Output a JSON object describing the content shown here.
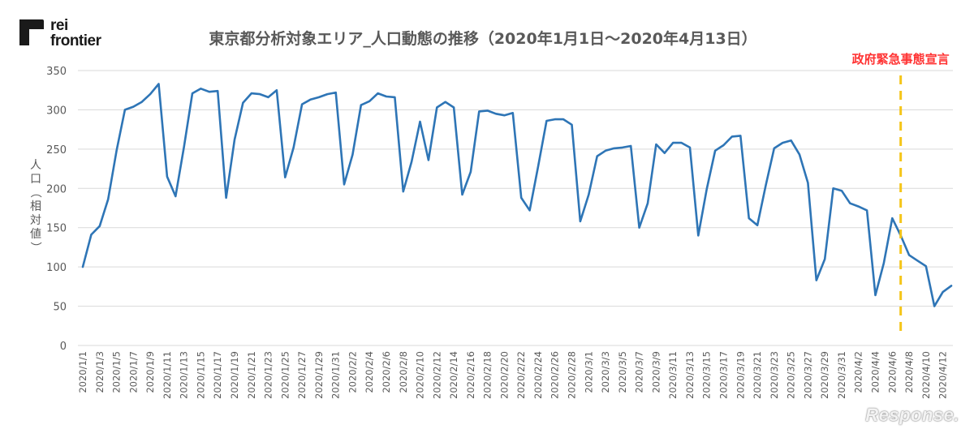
{
  "brand": {
    "name_line1": "rei",
    "name_line2": "frontier"
  },
  "watermark": "Response.",
  "colors": {
    "line": "#2e75b6",
    "event_line": "#f5c518",
    "event_label": "#ff3333",
    "grid": "#d9d9d9"
  },
  "chart_data": {
    "type": "line",
    "title": "東京都分析対象エリア_人口動態の推移（2020年1月1日〜2020年4月13日）",
    "ylabel": "人口（相対値）",
    "xlabel": "",
    "ylim": [
      0,
      350
    ],
    "yticks": [
      0,
      50,
      100,
      150,
      200,
      250,
      300,
      350
    ],
    "grid": "horizontal",
    "categories": [
      "2020/1/1",
      "2020/1/2",
      "2020/1/3",
      "2020/1/4",
      "2020/1/5",
      "2020/1/6",
      "2020/1/7",
      "2020/1/8",
      "2020/1/9",
      "2020/1/10",
      "2020/1/11",
      "2020/1/12",
      "2020/1/13",
      "2020/1/14",
      "2020/1/15",
      "2020/1/16",
      "2020/1/17",
      "2020/1/18",
      "2020/1/19",
      "2020/1/20",
      "2020/1/21",
      "2020/1/22",
      "2020/1/23",
      "2020/1/24",
      "2020/1/25",
      "2020/1/26",
      "2020/1/27",
      "2020/1/28",
      "2020/1/29",
      "2020/1/30",
      "2020/1/31",
      "2020/2/1",
      "2020/2/2",
      "2020/2/3",
      "2020/2/4",
      "2020/2/5",
      "2020/2/6",
      "2020/2/7",
      "2020/2/8",
      "2020/2/9",
      "2020/2/10",
      "2020/2/11",
      "2020/2/12",
      "2020/2/13",
      "2020/2/14",
      "2020/2/15",
      "2020/2/16",
      "2020/2/17",
      "2020/2/18",
      "2020/2/19",
      "2020/2/20",
      "2020/2/21",
      "2020/2/22",
      "2020/2/23",
      "2020/2/24",
      "2020/2/25",
      "2020/2/26",
      "2020/2/27",
      "2020/2/28",
      "2020/2/29",
      "2020/3/1",
      "2020/3/2",
      "2020/3/3",
      "2020/3/4",
      "2020/3/5",
      "2020/3/6",
      "2020/3/7",
      "2020/3/8",
      "2020/3/9",
      "2020/3/10",
      "2020/3/11",
      "2020/3/12",
      "2020/3/13",
      "2020/3/14",
      "2020/3/15",
      "2020/3/16",
      "2020/3/17",
      "2020/3/18",
      "2020/3/19",
      "2020/3/20",
      "2020/3/21",
      "2020/3/22",
      "2020/3/23",
      "2020/3/24",
      "2020/3/25",
      "2020/3/26",
      "2020/3/27",
      "2020/3/28",
      "2020/3/29",
      "2020/3/30",
      "2020/3/31",
      "2020/4/1",
      "2020/4/2",
      "2020/4/3",
      "2020/4/4",
      "2020/4/5",
      "2020/4/6",
      "2020/4/7",
      "2020/4/8",
      "2020/4/9",
      "2020/4/10",
      "2020/4/11",
      "2020/4/12",
      "2020/4/13"
    ],
    "values": [
      100,
      141,
      152,
      186,
      248,
      300,
      304,
      310,
      320,
      333,
      215,
      190,
      253,
      321,
      327,
      323,
      324,
      188,
      262,
      309,
      321,
      320,
      316,
      325,
      214,
      252,
      307,
      313,
      316,
      320,
      322,
      205,
      243,
      306,
      311,
      321,
      317,
      316,
      196,
      234,
      285,
      236,
      303,
      310,
      303,
      192,
      221,
      298,
      299,
      295,
      293,
      296,
      188,
      172,
      228,
      286,
      288,
      288,
      281,
      158,
      192,
      241,
      248,
      251,
      252,
      254,
      150,
      181,
      256,
      245,
      258,
      258,
      252,
      140,
      199,
      248,
      255,
      266,
      267,
      162,
      153,
      204,
      251,
      258,
      261,
      243,
      207,
      83,
      110,
      200,
      197,
      181,
      177,
      172,
      64,
      105,
      162,
      140,
      115,
      108,
      101,
      50,
      68,
      76
    ],
    "tick_labels_shown_every": 2,
    "annotations": [
      {
        "text": "政府緊急事態宣言",
        "at": "2020/4/7",
        "style": "dashed-vertical-line"
      }
    ]
  }
}
